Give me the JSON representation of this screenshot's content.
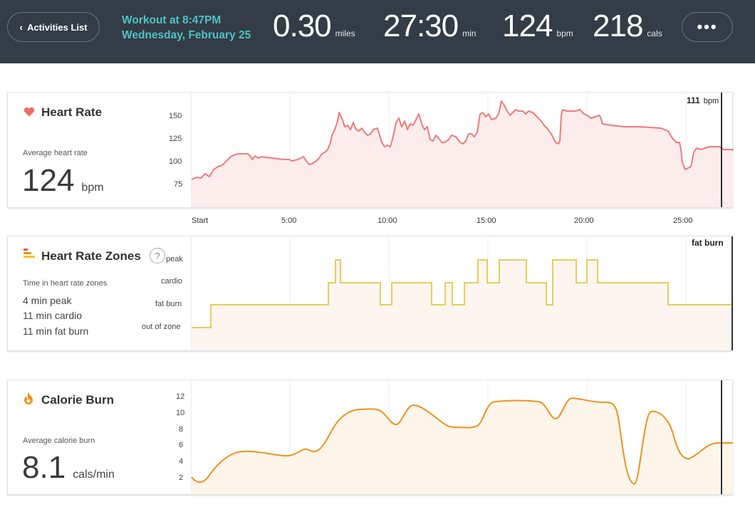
{
  "header": {
    "back_label": "Activities List",
    "workout_title": "Workout at 8:47PM",
    "workout_date": "Wednesday, February 25",
    "stats": [
      {
        "value": "0.30",
        "unit": "miles"
      },
      {
        "value": "27:30",
        "unit": "min"
      },
      {
        "value": "124",
        "unit": "bpm"
      },
      {
        "value": "218",
        "unit": "cals"
      }
    ],
    "more_label": "•••"
  },
  "heart_rate": {
    "title": "Heart Rate",
    "avg_label": "Average heart rate",
    "avg_value": "124",
    "avg_unit": "bpm",
    "cursor_value": "111",
    "cursor_unit": "bpm",
    "y_ticks": [
      "150",
      "125",
      "100",
      "75"
    ],
    "x_ticks": [
      "Start",
      "5:00",
      "10:00",
      "15:00",
      "20:00",
      "25:00"
    ]
  },
  "zones": {
    "title": "Heart Rate Zones",
    "help": "?",
    "label": "Time in heart rate zones",
    "lines": [
      "4 min peak",
      "11 min cardio",
      "11 min fat burn"
    ],
    "y_ticks": [
      "peak",
      "cardio",
      "fat burn",
      "out of zone"
    ],
    "cursor_value": "fat burn"
  },
  "calories": {
    "title": "Calorie Burn",
    "avg_label": "Average calorie burn",
    "avg_value": "8.1",
    "avg_unit": "cals/min",
    "y_ticks": [
      "12",
      "10",
      "8",
      "6",
      "4",
      "2"
    ]
  },
  "colors": {
    "header_bg": "#343c47",
    "accent_teal": "#4cc3c3",
    "heart": "#f07b7b",
    "zones": "#e8cc5a",
    "calories": "#f0921c"
  }
}
